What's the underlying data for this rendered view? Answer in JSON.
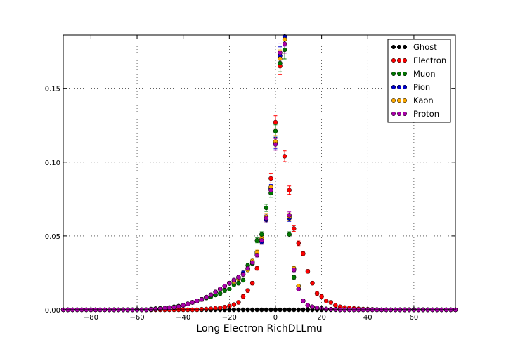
{
  "chart_data": {
    "type": "scatter",
    "title": "",
    "xlabel": "Long Electron RichDLLmu",
    "ylabel": "",
    "xlim": [
      -92,
      78
    ],
    "ylim": [
      0,
      0.186
    ],
    "grid": true,
    "legend_position": "top-right",
    "x_ticks": [
      -80,
      -60,
      -40,
      -20,
      0,
      20,
      40,
      60
    ],
    "x_tick_labels": [
      "−80",
      "−60",
      "−40",
      "−20",
      "0",
      "20",
      "40",
      "60"
    ],
    "y_ticks": [
      0,
      0.05,
      0.1,
      0.15
    ],
    "y_tick_labels": [
      "0.00",
      "0.05",
      "0.10",
      "0.15"
    ],
    "x": [
      -92,
      -90,
      -88,
      -86,
      -84,
      -82,
      -80,
      -78,
      -76,
      -74,
      -72,
      -70,
      -68,
      -66,
      -64,
      -62,
      -60,
      -58,
      -56,
      -54,
      -52,
      -50,
      -48,
      -46,
      -44,
      -42,
      -40,
      -38,
      -36,
      -34,
      -32,
      -30,
      -28,
      -26,
      -24,
      -22,
      -20,
      -18,
      -16,
      -14,
      -12,
      -10,
      -8,
      -6,
      -4,
      -2,
      0,
      2,
      4,
      6,
      8,
      10,
      12,
      14,
      16,
      18,
      20,
      22,
      24,
      26,
      28,
      30,
      32,
      34,
      36,
      38,
      40,
      42,
      44,
      46,
      48,
      50,
      52,
      54,
      56,
      58,
      60,
      62,
      64,
      66,
      68,
      70,
      72,
      74,
      76,
      78
    ],
    "series": [
      {
        "name": "Ghost",
        "color": "#000000",
        "values": [
          0,
          0,
          0,
          0,
          0,
          0,
          0,
          0,
          0,
          0,
          0,
          0,
          0,
          0,
          0,
          0,
          0,
          0,
          0,
          0,
          0,
          0,
          0,
          0,
          0,
          0,
          0,
          0,
          0,
          0,
          0,
          0,
          0,
          0,
          0,
          0,
          0,
          0,
          0,
          0,
          0,
          0,
          0,
          0,
          0,
          0,
          0,
          0,
          0,
          0,
          0,
          0,
          0,
          0,
          0,
          0,
          0,
          0,
          0,
          0,
          0,
          0,
          0,
          0,
          0,
          0,
          0,
          0,
          0,
          0,
          0,
          0,
          0,
          0,
          0,
          0,
          0,
          0,
          0,
          0,
          0,
          0,
          0,
          0,
          0,
          0
        ]
      },
      {
        "name": "Electron",
        "color": "#ff0000",
        "values": [
          0,
          0,
          0,
          0,
          0,
          0,
          0,
          0,
          0,
          0,
          0,
          0,
          0,
          0,
          0,
          0,
          0,
          0,
          0,
          0,
          0,
          0,
          0,
          0,
          0,
          0,
          0,
          0,
          0,
          0,
          0.0004,
          0.0005,
          0.0007,
          0.001,
          0.0013,
          0.0018,
          0.0025,
          0.0035,
          0.005,
          0.009,
          0.013,
          0.018,
          0.028,
          0.046,
          0.061,
          0.089,
          0.127,
          0.165,
          0.104,
          0.081,
          0.055,
          0.045,
          0.038,
          0.026,
          0.018,
          0.011,
          0.009,
          0.006,
          0.005,
          0.003,
          0.002,
          0.0015,
          0.0012,
          0.0009,
          0.0007,
          0.0005,
          0.0004,
          0.0003,
          0.0002,
          0,
          0,
          0,
          0,
          0,
          0,
          0,
          0,
          0,
          0,
          0,
          0,
          0,
          0,
          0,
          0,
          0
        ]
      },
      {
        "name": "Muon",
        "color": "#007700",
        "values": [
          0,
          0,
          0,
          0,
          0,
          0,
          0,
          0,
          0,
          0,
          0,
          0,
          0,
          0,
          0,
          0,
          0,
          0,
          0,
          0.0005,
          0.0008,
          0.001,
          0.001,
          0.0015,
          0.002,
          0.0025,
          0.003,
          0.004,
          0.005,
          0.006,
          0.007,
          0.008,
          0.009,
          0.01,
          0.011,
          0.013,
          0.014,
          0.017,
          0.018,
          0.02,
          0.03,
          0.031,
          0.047,
          0.051,
          0.069,
          0.079,
          0.121,
          0.167,
          0.176,
          0.051,
          0.022,
          0.016,
          0.006,
          0.003,
          0.002,
          0.0012,
          0.0008,
          0.0005,
          0.0003,
          0.0002,
          0,
          0,
          0,
          0,
          0,
          0,
          0,
          0,
          0,
          0,
          0,
          0,
          0,
          0,
          0,
          0,
          0,
          0,
          0,
          0,
          0,
          0,
          0,
          0,
          0,
          0
        ]
      },
      {
        "name": "Pion",
        "color": "#0000cc",
        "values": [
          0,
          0,
          0,
          0,
          0,
          0,
          0,
          0,
          0,
          0,
          0,
          0,
          0,
          0,
          0,
          0,
          0,
          0,
          0,
          0.0003,
          0.0005,
          0.0007,
          0.001,
          0.0013,
          0.0017,
          0.0022,
          0.003,
          0.004,
          0.005,
          0.006,
          0.007,
          0.0085,
          0.01,
          0.012,
          0.014,
          0.016,
          0.018,
          0.02,
          0.022,
          0.025,
          0.028,
          0.032,
          0.038,
          0.046,
          0.061,
          0.082,
          0.113,
          0.172,
          0.185,
          0.062,
          0.027,
          0.014,
          0.006,
          0.003,
          0.002,
          0.0012,
          0.0008,
          0.0005,
          0.0003,
          0.0002,
          0,
          0,
          0,
          0,
          0,
          0,
          0,
          0,
          0,
          0,
          0,
          0,
          0,
          0,
          0,
          0,
          0,
          0,
          0,
          0,
          0,
          0,
          0,
          0,
          0,
          0
        ]
      },
      {
        "name": "Kaon",
        "color": "#ffaa00",
        "values": [
          0,
          0,
          0,
          0,
          0,
          0,
          0,
          0,
          0,
          0,
          0,
          0,
          0,
          0,
          0,
          0,
          0,
          0,
          0,
          0.0003,
          0.0005,
          0.0007,
          0.001,
          0.0013,
          0.0017,
          0.0022,
          0.003,
          0.004,
          0.005,
          0.006,
          0.007,
          0.0085,
          0.01,
          0.012,
          0.014,
          0.016,
          0.018,
          0.019,
          0.021,
          0.024,
          0.027,
          0.033,
          0.039,
          0.048,
          0.063,
          0.083,
          0.114,
          0.17,
          0.183,
          0.063,
          0.028,
          0.016,
          0.006,
          0.003,
          0.002,
          0.0012,
          0.0008,
          0.0005,
          0.0003,
          0.0002,
          0,
          0,
          0,
          0,
          0,
          0,
          0,
          0,
          0,
          0,
          0,
          0,
          0,
          0,
          0,
          0,
          0,
          0,
          0,
          0,
          0,
          0,
          0,
          0,
          0,
          0
        ]
      },
      {
        "name": "Proton",
        "color": "#aa00aa",
        "values": [
          0,
          0,
          0,
          0,
          0,
          0,
          0,
          0,
          0,
          0,
          0,
          0,
          0,
          0,
          0,
          0,
          0,
          0,
          0,
          0.0003,
          0.0005,
          0.0007,
          0.001,
          0.0013,
          0.0017,
          0.0022,
          0.003,
          0.004,
          0.005,
          0.006,
          0.007,
          0.0085,
          0.01,
          0.012,
          0.014,
          0.016,
          0.018,
          0.02,
          0.022,
          0.024,
          0.028,
          0.032,
          0.037,
          0.047,
          0.062,
          0.081,
          0.112,
          0.174,
          0.18,
          0.064,
          0.027,
          0.014,
          0.006,
          0.003,
          0.002,
          0.0012,
          0.0008,
          0.0005,
          0.0003,
          0.0002,
          0,
          0,
          0,
          0,
          0,
          0,
          0,
          0,
          0,
          0,
          0,
          0,
          0,
          0,
          0,
          0,
          0,
          0,
          0,
          0,
          0,
          0,
          0,
          0,
          0,
          0
        ]
      }
    ]
  }
}
